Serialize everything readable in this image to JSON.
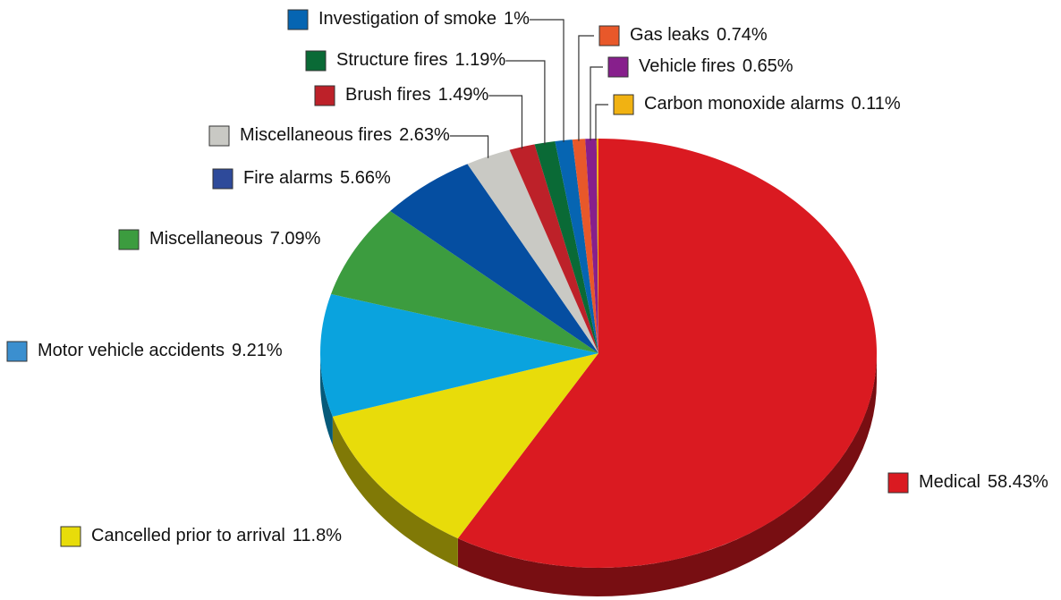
{
  "chart_data": {
    "type": "pie",
    "categories": [
      "Medical",
      "Cancelled prior to arrival",
      "Motor vehicle accidents",
      "Miscellaneous",
      "Fire alarms",
      "Miscellaneous fires",
      "Brush fires",
      "Structure fires",
      "Investigation of smoke",
      "Gas leaks",
      "Vehicle fires",
      "Carbon monoxide alarms"
    ],
    "values": [
      58.43,
      11.8,
      9.21,
      7.09,
      5.66,
      2.63,
      1.49,
      1.19,
      1,
      0.74,
      0.65,
      0.11
    ],
    "value_labels": [
      "58.43%",
      "11.8%",
      "9.21%",
      "7.09%",
      "5.66%",
      "2.63%",
      "1.49%",
      "1.19%",
      "1%",
      "0.74%",
      "0.65%",
      "0.11%"
    ],
    "colors": [
      "#da1a21",
      "#e8dc0a",
      "#0aa3de",
      "#3c9c3f",
      "#054ea1",
      "#c9c9c4",
      "#bd2129",
      "#0a6a36",
      "#0665b2",
      "#e8582a",
      "#871f8c",
      "#f1b212"
    ],
    "legend_colors": [
      "#da1a21",
      "#e8dc0a",
      "#3b8fcf",
      "#3c9c3f",
      "#2e4a9a",
      "#c9c9c4",
      "#bd2129",
      "#0a6a36",
      "#0665b2",
      "#e8582a",
      "#871f8c",
      "#f1b212"
    ]
  }
}
